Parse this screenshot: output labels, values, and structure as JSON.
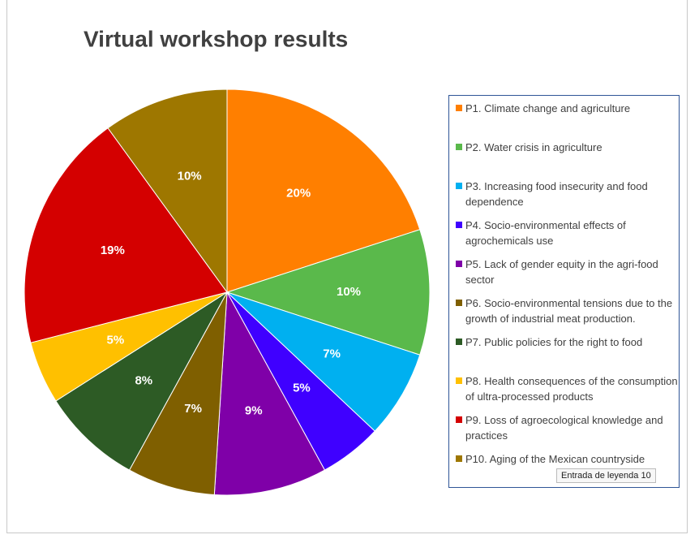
{
  "chart_data": {
    "type": "pie",
    "title": "Virtual workshop results",
    "categories": [
      "P1. Climate change and agriculture",
      "P2. Water crisis in agriculture",
      "P3. Increasing food insecurity and food dependence",
      "P4. Socio-environmental effects of agrochemicals use",
      "P5. Lack of gender equity in the agri-food sector",
      "P6. Socio-environmental tensions due to the growth of industrial meat production.",
      "P7. Public policies for the right to food",
      "P8. Health consequences of the consumption of ultra-processed products",
      "P9. Loss of agroecological knowledge and practices",
      "P10. Aging of the Mexican countryside"
    ],
    "values": [
      20,
      10,
      7,
      5,
      9,
      7,
      8,
      5,
      19,
      10
    ],
    "value_labels": [
      "20%",
      "10%",
      "7%",
      "5%",
      "9%",
      "7%",
      "8%",
      "5%",
      "19%",
      "10%"
    ],
    "colors": [
      "#ff7f00",
      "#5ab94b",
      "#00b0f0",
      "#3f00ff",
      "#7f00a8",
      "#7f5f00",
      "#2d5b25",
      "#ffc000",
      "#d40000",
      "#9e7700"
    ],
    "legend": "right",
    "tooltip": "Entrada de leyenda 10"
  }
}
